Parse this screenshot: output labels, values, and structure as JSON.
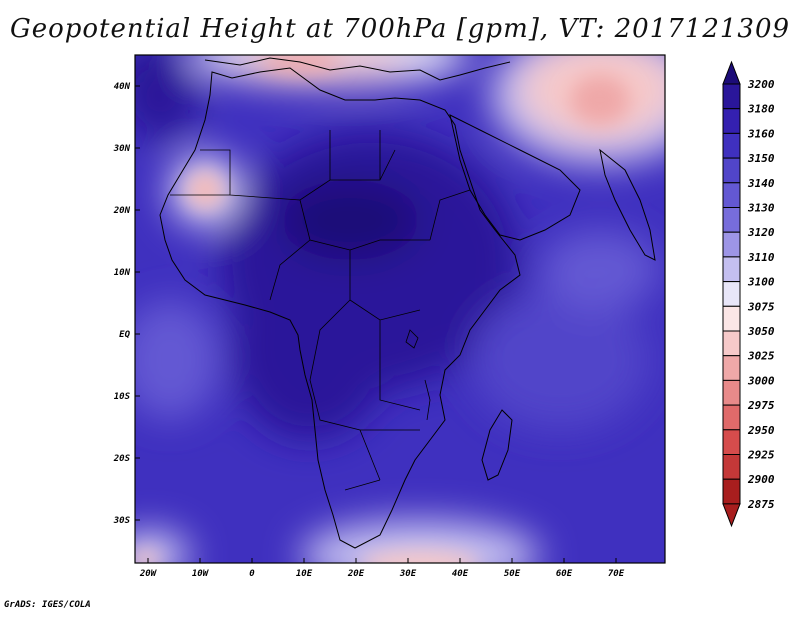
{
  "title": "Geopotential Height at 700hPa [gpm], VT: 2017121309",
  "credit": "GrADS: IGES/COLA",
  "lon_ticks": [
    "20W",
    "10W",
    "0",
    "10E",
    "20E",
    "30E",
    "40E",
    "50E",
    "60E",
    "70E"
  ],
  "lat_ticks": [
    "40N",
    "30N",
    "20N",
    "10N",
    "EQ",
    "10S",
    "20S",
    "30S"
  ],
  "colorbar": {
    "levels": [
      "3200",
      "3180",
      "3160",
      "3150",
      "3140",
      "3130",
      "3120",
      "3110",
      "3100",
      "3075",
      "3050",
      "3025",
      "3000",
      "2975",
      "2950",
      "2925",
      "2900",
      "2875"
    ],
    "colors": [
      "#1c0c78",
      "#2a169a",
      "#3420b0",
      "#3f30bf",
      "#5145c9",
      "#6358d3",
      "#776ddb",
      "#9d95e6",
      "#c4bff0",
      "#e8e6f8",
      "#fbe6e6",
      "#f6c9c9",
      "#efa8a8",
      "#e88a8a",
      "#e06a6a",
      "#d64c4c",
      "#c43838",
      "#a81e1e"
    ]
  },
  "field_colors": {
    "ocean_deep": "#3f30bf",
    "land_core": "#2a169a",
    "high_core": "#1c0c78",
    "light": "#9d95e6",
    "pale": "#e8e6f8",
    "pink": "#f6c9c9",
    "red": "#e88a8a"
  }
}
